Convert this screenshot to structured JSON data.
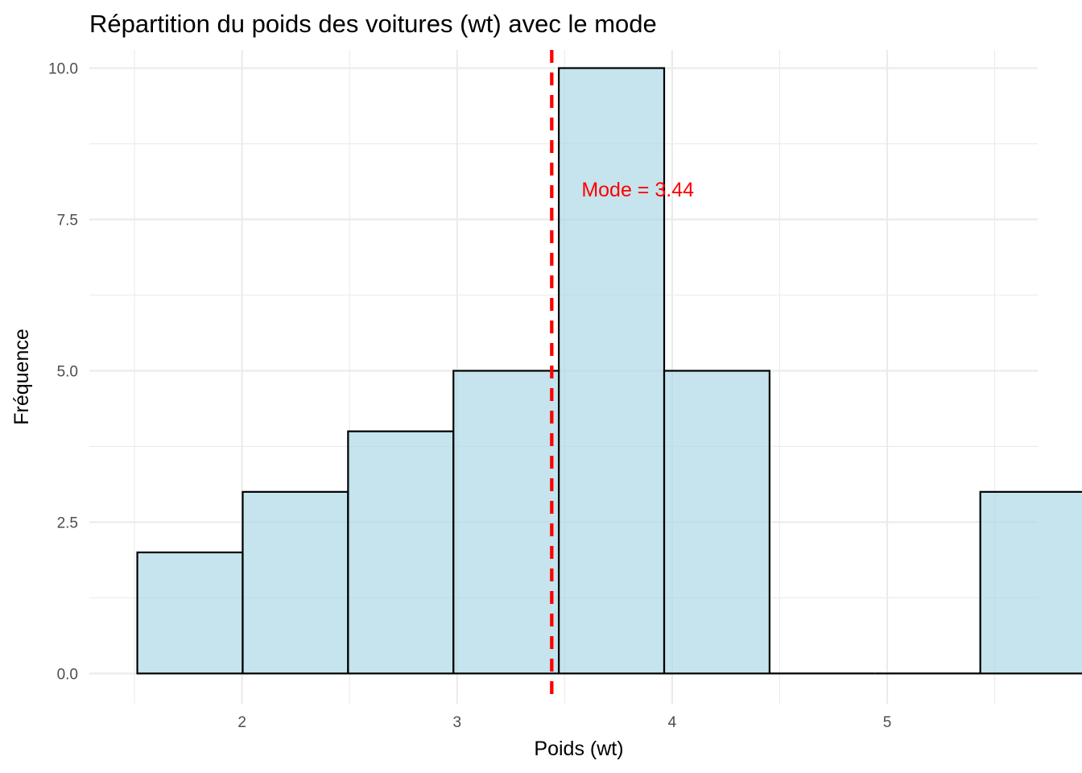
{
  "chart_data": {
    "type": "bar",
    "title": "Répartition du poids des voitures (wt) avec le mode",
    "xlabel": "Poids (wt)",
    "ylabel": "Fréquence",
    "xlim": [
      1.29,
      5.7
    ],
    "ylim": [
      -0.5,
      10.3
    ],
    "x_ticks": [
      2,
      3,
      4,
      5
    ],
    "x_tick_labels": [
      "2",
      "3",
      "4",
      "5"
    ],
    "y_ticks": [
      0,
      2.5,
      5,
      7.5,
      10
    ],
    "y_tick_labels": [
      "0.0",
      "2.5",
      "5.0",
      "7.5",
      "10.0"
    ],
    "bins": [
      {
        "x0": 1.513,
        "x1": 2.003,
        "count": 2
      },
      {
        "x0": 2.003,
        "x1": 2.493,
        "count": 3
      },
      {
        "x0": 2.493,
        "x1": 2.983,
        "count": 4
      },
      {
        "x0": 2.983,
        "x1": 3.473,
        "count": 5
      },
      {
        "x0": 3.473,
        "x1": 3.963,
        "count": 10
      },
      {
        "x0": 3.963,
        "x1": 4.453,
        "count": 5
      },
      {
        "x0": 4.453,
        "x1": 4.943,
        "count": 0
      },
      {
        "x0": 4.943,
        "x1": 5.433,
        "count": 0
      },
      {
        "x0": 5.433,
        "x1": 5.923,
        "count": 3
      }
    ],
    "mode_line": {
      "x": 3.44,
      "color": "#ff0000",
      "style": "dashed"
    },
    "annotation": {
      "text": "Mode = 3.44",
      "x": 3.84,
      "y": 8,
      "color": "#ff0000"
    },
    "bar_fill": "#add8e6",
    "bar_stroke": "#000000",
    "grid": true,
    "legend": "none"
  }
}
